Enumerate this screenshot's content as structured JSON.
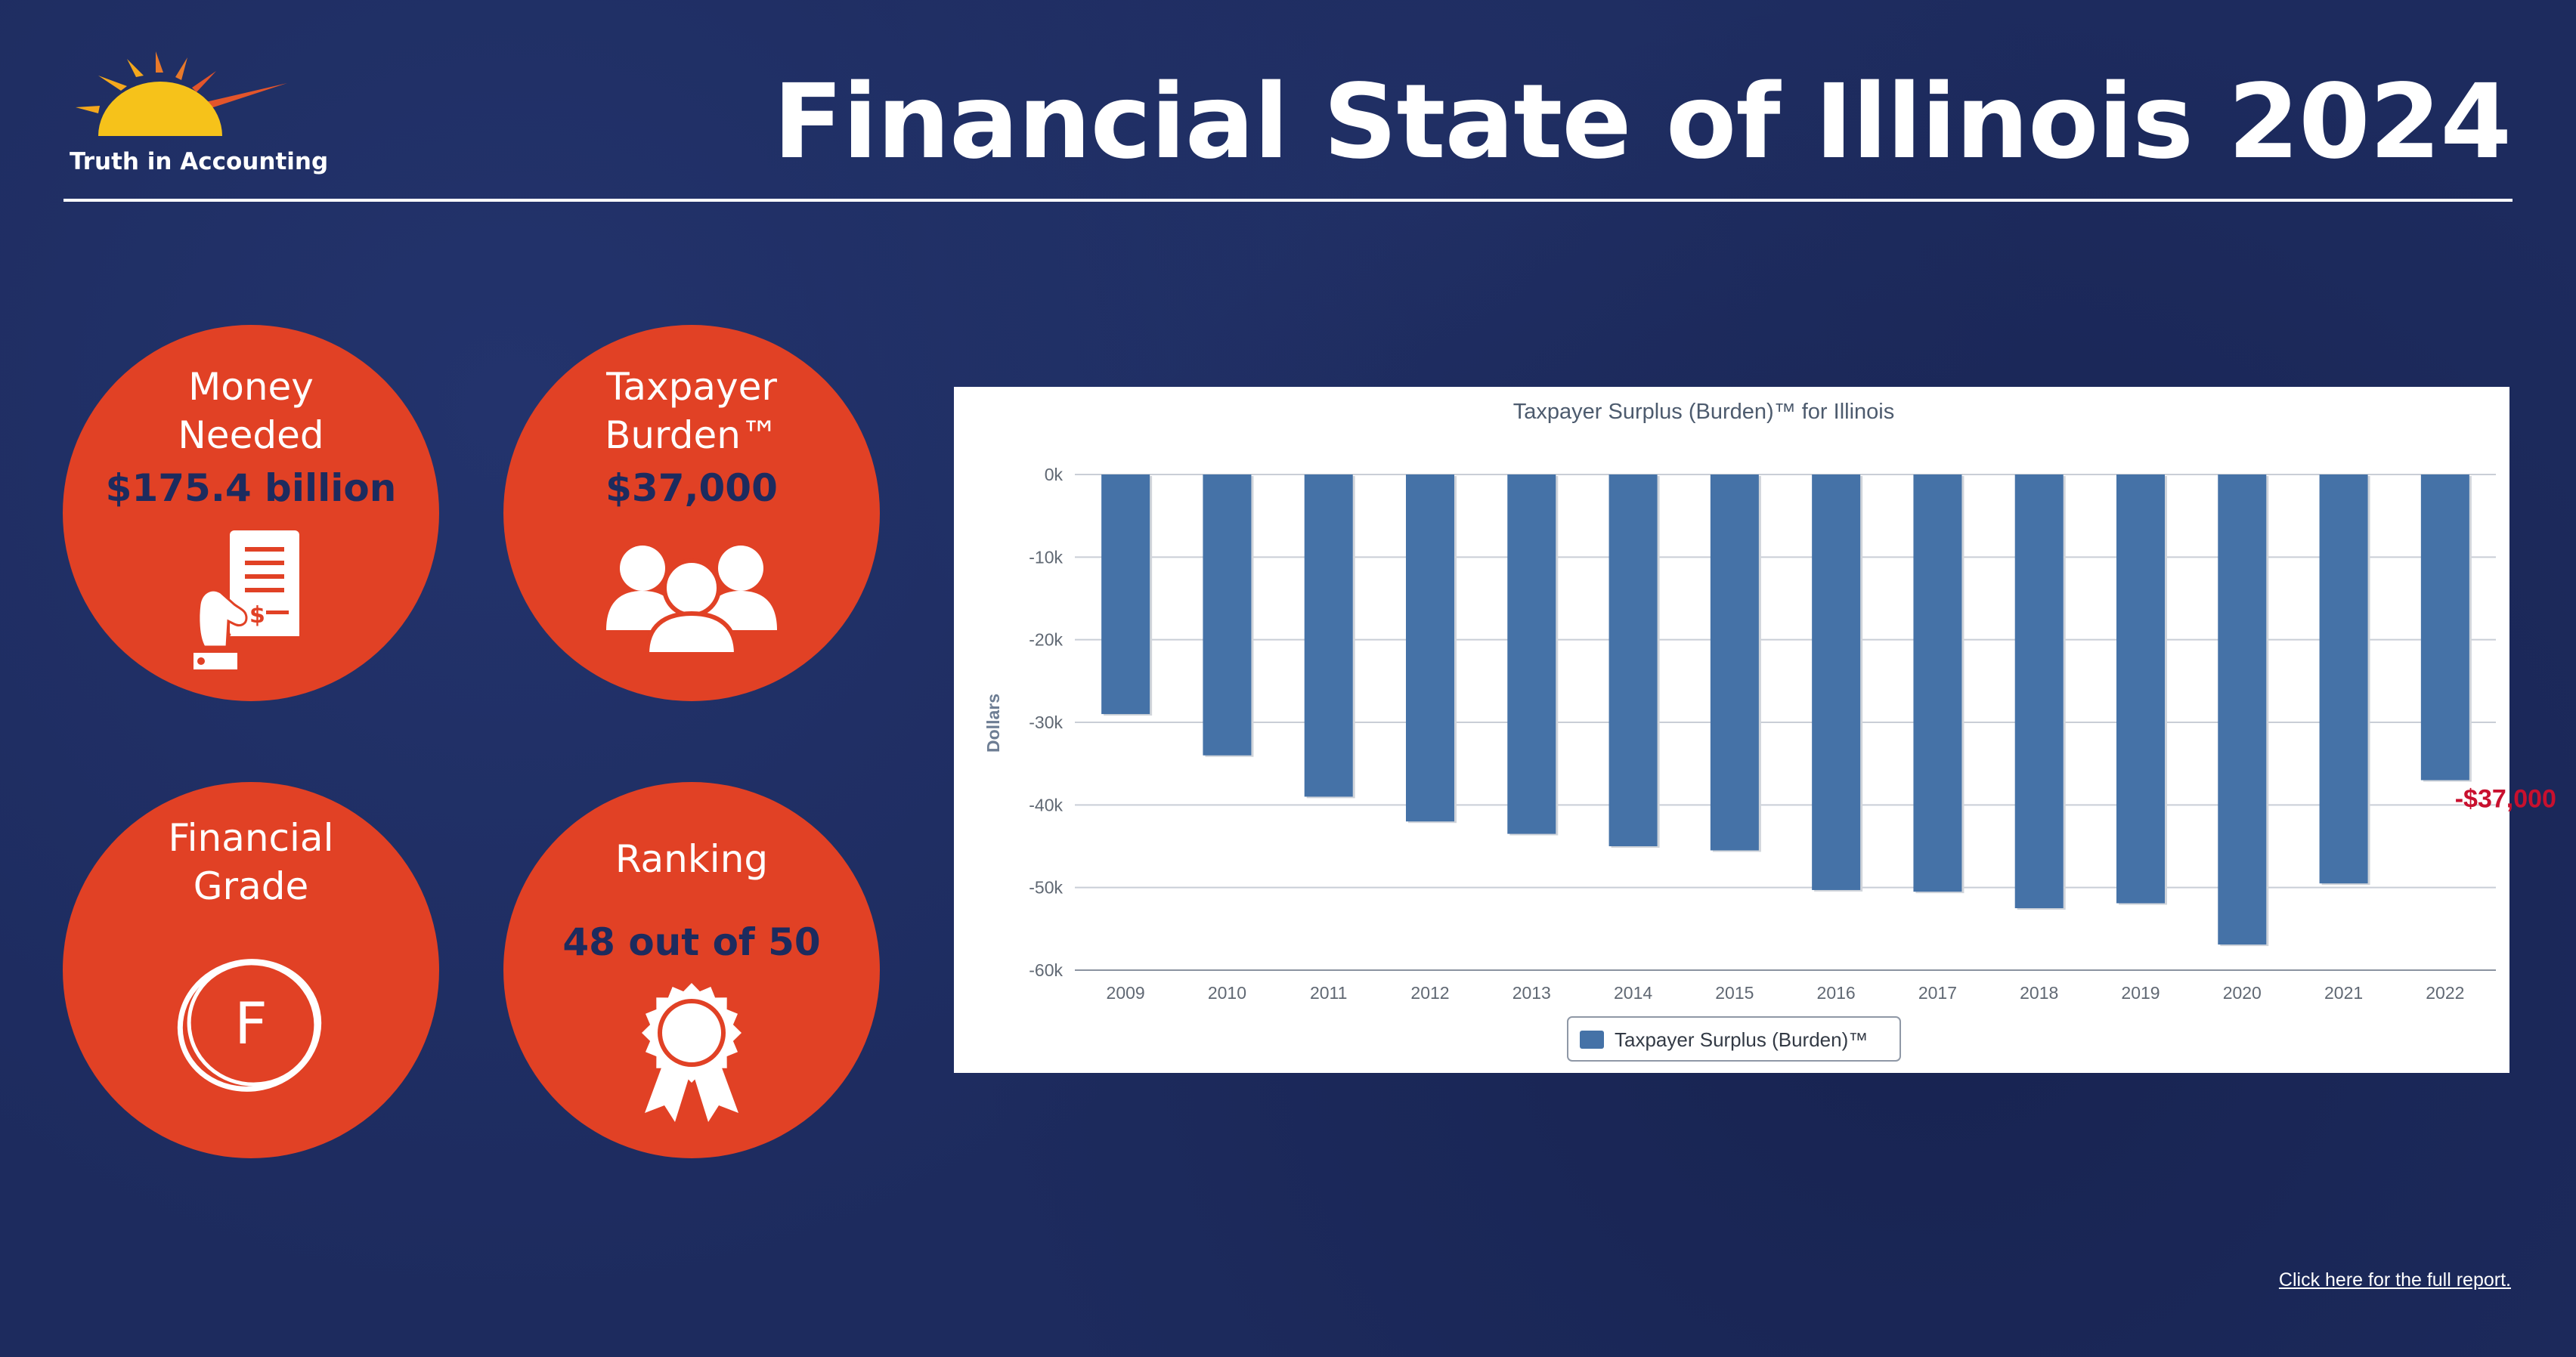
{
  "logo": {
    "text": "Truth in Accounting"
  },
  "title": "Financial State of Illinois 2024",
  "kpis": {
    "money": {
      "label_line1": "Money",
      "label_line2": "Needed",
      "value": "$175.4 billion",
      "icon": "receipt-hand-icon"
    },
    "burden": {
      "label_line1": "Taxpayer",
      "label_line2": "Burden™",
      "value": "$37,000",
      "icon": "people-group-icon"
    },
    "grade": {
      "label_line1": "Financial",
      "label_line2": "Grade",
      "value": "F",
      "icon": "circled-grade-icon"
    },
    "rank": {
      "label": "Ranking",
      "value": "48 out of 50",
      "icon": "award-ribbon-icon"
    }
  },
  "colors": {
    "background": "#1d2b5e",
    "accent": "#e14125",
    "bar": "#4572a7",
    "callout": "#c8102e"
  },
  "chart_data": {
    "type": "bar",
    "title": "Taxpayer Surplus (Burden)™ for Illinois",
    "ylabel": "Dollars",
    "xlabel": "",
    "categories": [
      "2009",
      "2010",
      "2011",
      "2012",
      "2013",
      "2014",
      "2015",
      "2016",
      "2017",
      "2018",
      "2019",
      "2020",
      "2021",
      "2022"
    ],
    "series": [
      {
        "name": "Taxpayer Surplus (Burden)™",
        "values": [
          -29000,
          -34000,
          -39000,
          -42000,
          -43500,
          -45000,
          -45500,
          -50300,
          -50500,
          -52500,
          -51900,
          -56900,
          -49500,
          -37000
        ]
      }
    ],
    "ylim": [
      -60000,
      0
    ],
    "yticks": [
      0,
      -10000,
      -20000,
      -30000,
      -40000,
      -50000,
      -60000
    ],
    "ytick_labels": [
      "0k",
      "-10k",
      "-20k",
      "-30k",
      "-40k",
      "-50k",
      "-60k"
    ],
    "annotation": {
      "category": "2022",
      "text": "-$37,000"
    },
    "legend": "bottom-center",
    "grid": true
  },
  "footer": {
    "link_text": "Click here for the full report."
  }
}
